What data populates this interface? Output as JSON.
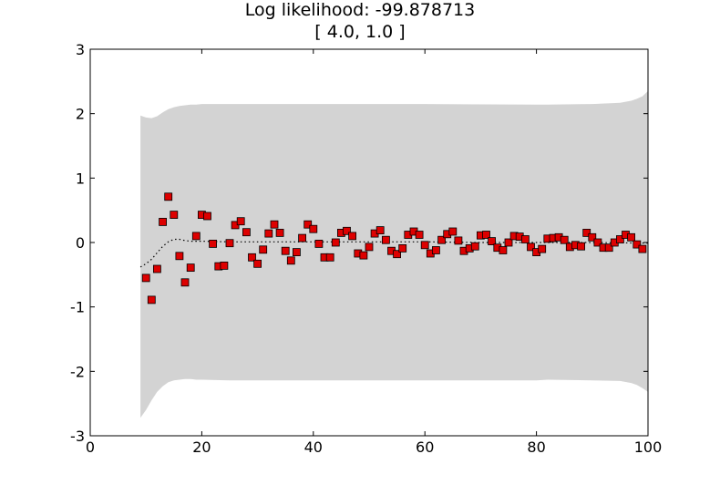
{
  "chart_data": {
    "type": "scatter",
    "title": "Log likelihood: -99.878713",
    "subtitle": "[ 4.0, 1.0 ]",
    "xlabel": "",
    "ylabel": "",
    "xlim": [
      0,
      100
    ],
    "ylim": [
      -3,
      3
    ],
    "xticks": [
      0,
      20,
      40,
      60,
      80,
      100
    ],
    "yticks": [
      -3,
      -2,
      -1,
      0,
      1,
      2,
      3
    ],
    "grid": false,
    "legend": "none",
    "colors": {
      "points": "#dd0000",
      "point_edge": "#000000",
      "band": "#d3d3d3",
      "mean_line": "#000000"
    },
    "series": [
      {
        "kind": "points",
        "x": [
          10,
          11,
          12,
          13,
          14,
          15,
          16,
          17,
          18,
          19,
          20,
          21,
          22,
          23,
          24,
          25,
          26,
          27,
          28,
          29,
          30,
          31,
          32,
          33,
          34,
          35,
          36,
          37,
          38,
          39,
          40,
          41,
          42,
          43,
          44,
          45,
          46,
          47,
          48,
          49,
          50,
          51,
          52,
          53,
          54,
          55,
          56,
          57,
          58,
          59,
          60,
          61,
          62,
          63,
          64,
          65,
          66,
          67,
          68,
          69,
          70,
          71,
          72,
          73,
          74,
          75,
          76,
          77,
          78,
          79,
          80,
          81,
          82,
          83,
          84,
          85,
          86,
          87,
          88,
          89,
          90,
          91,
          92,
          93,
          94,
          95,
          96,
          97,
          98,
          99
        ],
        "y": [
          -0.55,
          -0.89,
          -0.41,
          0.32,
          0.71,
          0.43,
          -0.21,
          -0.62,
          -0.39,
          0.1,
          0.43,
          0.41,
          -0.02,
          -0.37,
          -0.36,
          -0.01,
          0.27,
          0.33,
          0.16,
          -0.23,
          -0.33,
          -0.11,
          0.14,
          0.28,
          0.15,
          -0.13,
          -0.28,
          -0.15,
          0.07,
          0.28,
          0.21,
          -0.02,
          -0.23,
          -0.23,
          0.0,
          0.15,
          0.18,
          0.1,
          -0.17,
          -0.2,
          -0.07,
          0.14,
          0.19,
          0.04,
          -0.13,
          -0.18,
          -0.09,
          0.12,
          0.17,
          0.12,
          -0.04,
          -0.17,
          -0.12,
          0.04,
          0.13,
          0.17,
          0.03,
          -0.13,
          -0.09,
          -0.06,
          0.11,
          0.12,
          0.02,
          -0.08,
          -0.12,
          0.0,
          0.1,
          0.09,
          0.05,
          -0.07,
          -0.15,
          -0.1,
          0.06,
          0.07,
          0.08,
          0.04,
          -0.07,
          -0.04,
          -0.06,
          0.15,
          0.08,
          0.0,
          -0.08,
          -0.08,
          0.0,
          0.05,
          0.12,
          0.08,
          -0.03,
          -0.1
        ]
      },
      {
        "kind": "mean",
        "x": [
          9,
          10,
          11,
          12,
          13,
          14,
          15,
          16,
          17,
          18,
          20,
          25,
          30,
          40,
          50,
          60,
          70,
          80,
          90,
          100
        ],
        "y": [
          -0.38,
          -0.33,
          -0.26,
          -0.16,
          -0.06,
          0.01,
          0.05,
          0.05,
          0.03,
          0.02,
          0.02,
          0.01,
          0.01,
          0.01,
          0.01,
          0.01,
          0.0,
          0.0,
          0.0,
          -0.01
        ]
      },
      {
        "kind": "band",
        "x": [
          9,
          10,
          11,
          12,
          13,
          14,
          15,
          16,
          17,
          18,
          19,
          20,
          25,
          40,
          60,
          80,
          82,
          90,
          95,
          97,
          98,
          99,
          100
        ],
        "upper": [
          1.97,
          1.94,
          1.93,
          1.96,
          2.02,
          2.07,
          2.1,
          2.12,
          2.13,
          2.14,
          2.14,
          2.15,
          2.15,
          2.15,
          2.15,
          2.14,
          2.14,
          2.15,
          2.17,
          2.2,
          2.23,
          2.27,
          2.35
        ],
        "lower": [
          -2.72,
          -2.6,
          -2.45,
          -2.32,
          -2.23,
          -2.17,
          -2.14,
          -2.13,
          -2.12,
          -2.12,
          -2.13,
          -2.13,
          -2.14,
          -2.14,
          -2.14,
          -2.14,
          -2.13,
          -2.14,
          -2.15,
          -2.18,
          -2.21,
          -2.26,
          -2.32
        ]
      }
    ]
  }
}
